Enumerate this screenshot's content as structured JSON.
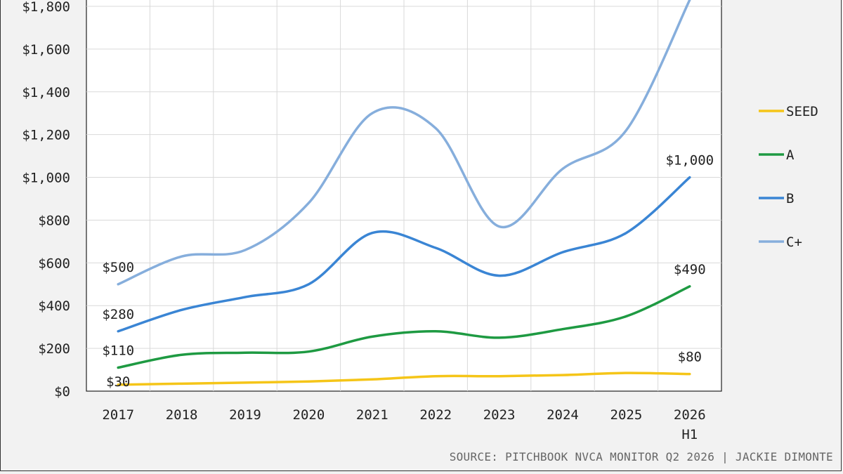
{
  "chart_data": {
    "type": "line",
    "categories": [
      "2017",
      "2018",
      "2019",
      "2020",
      "2021",
      "2022",
      "2023",
      "2024",
      "2025",
      "2026\nH1"
    ],
    "ylim": [
      0,
      1800
    ],
    "yticks": [
      "$0",
      "$200",
      "$400",
      "$600",
      "$800",
      "$1,000",
      "$1,200",
      "$1,400",
      "$1,600",
      "$1,800"
    ],
    "grid": true,
    "legend_position": "right",
    "series": [
      {
        "name": "SEED",
        "color": "#f5c518",
        "values": [
          30,
          35,
          40,
          45,
          55,
          70,
          70,
          75,
          85,
          80
        ]
      },
      {
        "name": "A",
        "color": "#1e9a42",
        "values": [
          110,
          170,
          180,
          185,
          255,
          280,
          250,
          290,
          350,
          490
        ]
      },
      {
        "name": "B",
        "color": "#3a85d4",
        "values": [
          280,
          380,
          440,
          500,
          740,
          670,
          540,
          650,
          740,
          1000
        ]
      },
      {
        "name": "C+",
        "color": "#86aedc",
        "values": [
          500,
          630,
          660,
          880,
          1300,
          1230,
          770,
          1040,
          1220,
          1830
        ]
      }
    ],
    "data_labels": [
      {
        "series": "C+",
        "index": 0,
        "text": "$500"
      },
      {
        "series": "B",
        "index": 0,
        "text": "$280"
      },
      {
        "series": "A",
        "index": 0,
        "text": "$110"
      },
      {
        "series": "SEED",
        "index": 0,
        "text": "$30"
      },
      {
        "series": "B",
        "index": 9,
        "text": "$1,000"
      },
      {
        "series": "A",
        "index": 9,
        "text": "$490"
      },
      {
        "series": "SEED",
        "index": 9,
        "text": "$80"
      }
    ]
  },
  "footer": {
    "source": "SOURCE: PITCHBOOK NVCA MONITOR Q2 2026 | JACKIE DIMONTE"
  }
}
